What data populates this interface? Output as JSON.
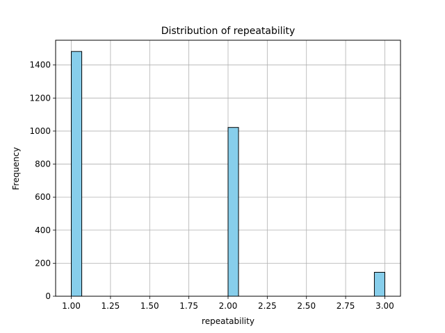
{
  "chart_data": {
    "type": "bar",
    "title": "Distribution of repeatability",
    "xlabel": "repeatability",
    "ylabel": "Frequency",
    "xlim": [
      0.9,
      3.1
    ],
    "ylim": [
      0,
      1550
    ],
    "xticks": [
      1.0,
      1.25,
      1.5,
      1.75,
      2.0,
      2.25,
      2.5,
      2.75,
      3.0
    ],
    "xtick_labels": [
      "1.00",
      "1.25",
      "1.50",
      "1.75",
      "2.00",
      "2.25",
      "2.50",
      "2.75",
      "3.00"
    ],
    "yticks": [
      0,
      200,
      400,
      600,
      800,
      1000,
      1200,
      1400
    ],
    "ytick_labels": [
      "0",
      "200",
      "400",
      "600",
      "800",
      "1000",
      "1200",
      "1400"
    ],
    "bins": [
      {
        "x0": 1.0,
        "x1": 1.0667,
        "value": 1482
      },
      {
        "x0": 2.0,
        "x1": 2.0667,
        "value": 1022
      },
      {
        "x0": 2.9333,
        "x1": 3.0,
        "value": 145
      }
    ],
    "grid": true,
    "bar_color": "#87ceeb",
    "edge_color": "#000000"
  }
}
